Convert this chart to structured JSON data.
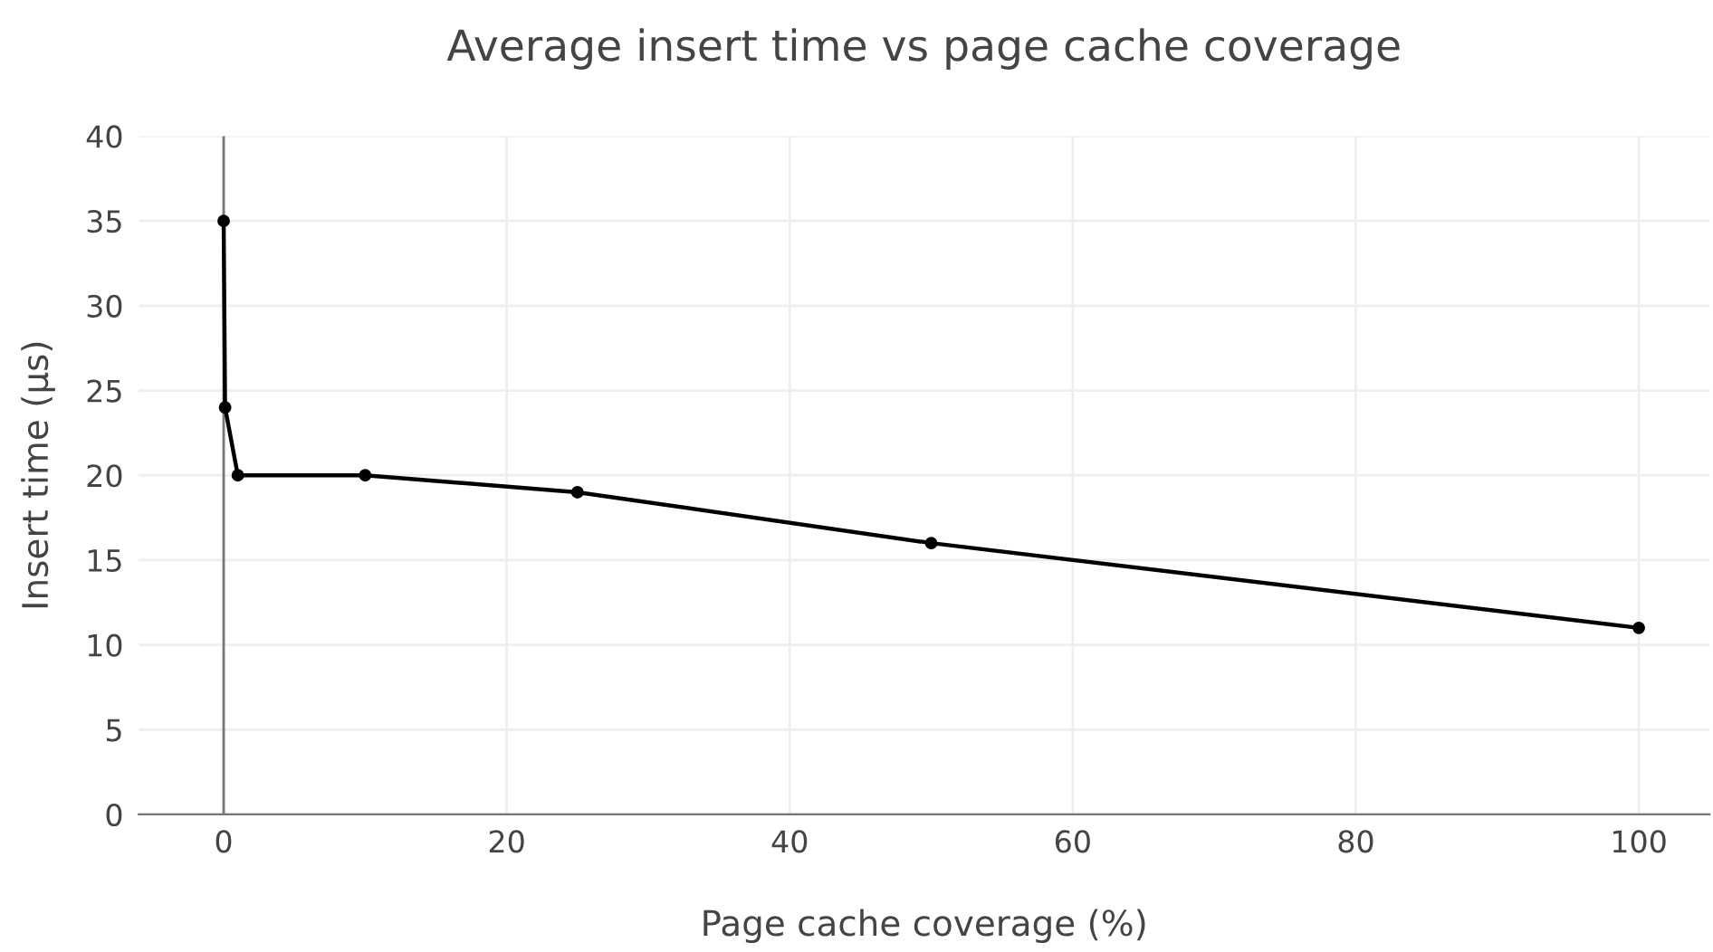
{
  "chart_data": {
    "type": "line",
    "title": "Average insert time vs page cache coverage",
    "xlabel": "Page cache coverage (%)",
    "ylabel": "Insert time (µs)",
    "x": [
      0,
      0.1,
      1,
      10,
      25,
      50,
      100
    ],
    "series": [
      {
        "color": "#000000",
        "values": [
          35,
          24,
          20,
          20,
          19,
          16,
          11
        ]
      }
    ],
    "xlim": [
      -6,
      105
    ],
    "ylim": [
      0,
      40
    ],
    "xticks": [
      0,
      20,
      40,
      60,
      80,
      100
    ],
    "yticks": [
      0,
      5,
      10,
      15,
      20,
      25,
      30,
      35,
      40
    ],
    "ref_lines": [
      {
        "axis": "x",
        "value": 0,
        "color": "#777777"
      }
    ],
    "grid": true,
    "marker": "circle",
    "line_style": "solid"
  }
}
